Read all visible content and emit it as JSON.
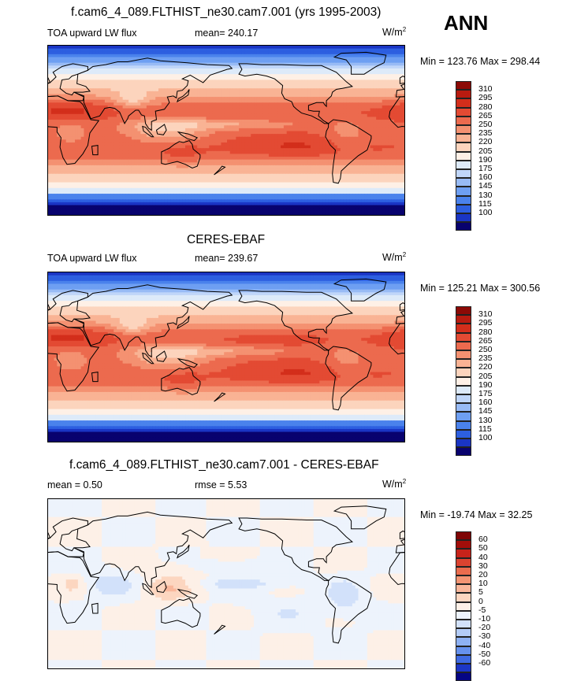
{
  "annotation": "ANN",
  "units_base": "W/m",
  "units_exp": "2",
  "palettes": {
    "seq": [
      "#08026e",
      "#1a35c4",
      "#2d5fe0",
      "#4a82ec",
      "#6e9ff2",
      "#98bbf5",
      "#c0d6f9",
      "#ddeaf9",
      "#fef0e6",
      "#fcd4bd",
      "#f9b394",
      "#f49171",
      "#ec6a4e",
      "#e34a33",
      "#d32e1b",
      "#b81b10",
      "#8c0a06"
    ],
    "diff": [
      "#050584",
      "#1c36c6",
      "#3f6ae2",
      "#6691ed",
      "#8eb1f3",
      "#b3ccf7",
      "#d2e1fa",
      "#edf3fc",
      "#fdf0e7",
      "#fcd6c0",
      "#f9b79b",
      "#f39574",
      "#ea6c4e",
      "#dc4330",
      "#c7231a",
      "#a20e0a",
      "#7f0505"
    ]
  },
  "panels": [
    {
      "title": "f.cam6_4_089.FLTHIST_ne30.cam7.001 (yrs 1995-2003)",
      "left_label": "TOA upward LW flux",
      "center_label": "mean= 240.17",
      "minmax": "Min = 123.76 Max = 298.44",
      "colorbar_levels": [
        "310",
        "295",
        "280",
        "265",
        "250",
        "235",
        "220",
        "205",
        "190",
        "175",
        "160",
        "145",
        "130",
        "115",
        "100"
      ],
      "chart_data": {
        "type": "heatmap",
        "field": "model",
        "levels": [
          100,
          115,
          130,
          145,
          160,
          175,
          190,
          205,
          220,
          235,
          250,
          265,
          280,
          295,
          310
        ]
      }
    },
    {
      "title": "CERES-EBAF",
      "left_label": "TOA upward LW flux",
      "center_label": "mean= 239.67",
      "minmax": "Min = 125.21 Max = 300.56",
      "colorbar_levels": [
        "310",
        "295",
        "280",
        "265",
        "250",
        "235",
        "220",
        "205",
        "190",
        "175",
        "160",
        "145",
        "130",
        "115",
        "100"
      ],
      "chart_data": {
        "type": "heatmap",
        "field": "obs",
        "levels": [
          100,
          115,
          130,
          145,
          160,
          175,
          190,
          205,
          220,
          235,
          250,
          265,
          280,
          295,
          310
        ]
      }
    },
    {
      "title": "f.cam6_4_089.FLTHIST_ne30.cam7.001 - CERES-EBAF",
      "left_label": "mean =   0.50",
      "center_label": "rmse =   5.53",
      "minmax": "Min = -19.74 Max =  32.25",
      "colorbar_levels": [
        "60",
        "50",
        "40",
        "30",
        "20",
        "10",
        "5",
        "0",
        "-5",
        "-10",
        "-20",
        "-30",
        "-40",
        "-50",
        "-60"
      ],
      "chart_data": {
        "type": "heatmap",
        "field": "diff",
        "levels": [
          -60,
          -50,
          -40,
          -30,
          -20,
          -10,
          -5,
          0,
          5,
          10,
          20,
          30,
          40,
          50,
          60
        ]
      }
    }
  ]
}
